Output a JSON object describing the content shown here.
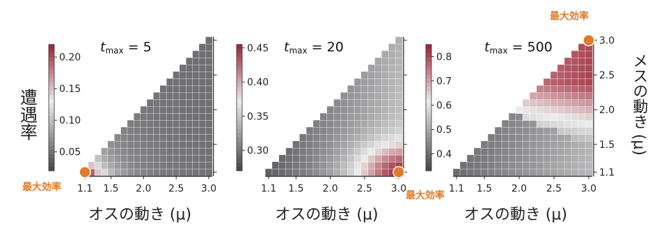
{
  "figure": {
    "ylabel_left": "遭遇率",
    "ylabel_right": "メスの動き (μ)",
    "accent_color": "#e07b2a",
    "low_color": "#4a4a4e",
    "mid_color": "#ececec",
    "high_color": "#a0283a"
  },
  "chart_data": [
    {
      "type": "heatmap",
      "title_t": "t",
      "title_sub": "max",
      "title_val": " = 5",
      "xlabel": "オスの動き (μ)",
      "x_ticks": [
        "1.1",
        "1.5",
        "2.0",
        "2.5",
        "3.0"
      ],
      "y_ticks": [],
      "xlim": [
        1.1,
        3.0
      ],
      "ylim": [
        1.1,
        3.0
      ],
      "grid": "upper-left triangle, 20 x 20 cells",
      "colorbar": {
        "ticks": [
          "0.05",
          "0.10",
          "0.15",
          "0.20"
        ],
        "range": [
          0.02,
          0.22
        ]
      },
      "annotation": {
        "text": "最大効率",
        "at": [
          1.1,
          1.1
        ]
      }
    },
    {
      "type": "heatmap",
      "title_t": "t",
      "title_sub": "max",
      "title_val": " = 20",
      "xlabel": "オスの動き (μ)",
      "x_ticks": [
        "1.1",
        "1.5",
        "2.0",
        "2.5",
        "3.0"
      ],
      "y_ticks": [],
      "xlim": [
        1.1,
        3.0
      ],
      "ylim": [
        1.1,
        3.0
      ],
      "grid": "upper-left triangle, 20 x 20 cells",
      "colorbar": {
        "ticks": [
          "0.30",
          "0.35",
          "0.40",
          "0.45"
        ],
        "range": [
          0.27,
          0.455
        ]
      },
      "annotation": {
        "text": "最大効率",
        "at": [
          3.0,
          1.1
        ]
      }
    },
    {
      "type": "heatmap",
      "title_t": "t",
      "title_sub": "max",
      "title_val": " = 500",
      "xlabel": "オスの動き (μ)",
      "x_ticks": [
        "1.1",
        "1.5",
        "2.0",
        "2.5",
        "3.0"
      ],
      "y_ticks": [
        "1.1",
        "1.5",
        "2.0",
        "2.5",
        "3.0"
      ],
      "xlim": [
        1.1,
        3.0
      ],
      "ylim": [
        1.1,
        3.0
      ],
      "grid": "upper-left triangle, 20 x 20 cells",
      "colorbar": {
        "ticks": [
          "0.4",
          "0.5",
          "0.6",
          "0.7",
          "0.8"
        ],
        "range": [
          0.33,
          0.85
        ]
      },
      "annotation": {
        "text": "最大効率",
        "at": [
          3.0,
          3.0
        ]
      }
    }
  ]
}
